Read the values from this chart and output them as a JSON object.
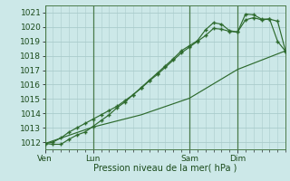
{
  "title": "",
  "xlabel": "Pression niveau de la mer( hPa )",
  "bg_color": "#cce8e8",
  "grid_color": "#aacccc",
  "line_color1": "#2d6a2d",
  "line_color2": "#2d6a2d",
  "line_color3": "#2d6a2d",
  "ylim": [
    1011.5,
    1021.5
  ],
  "yticks": [
    1012,
    1013,
    1014,
    1015,
    1016,
    1017,
    1018,
    1019,
    1020,
    1021
  ],
  "xtick_labels": [
    "Ven",
    "Lun",
    "Sam",
    "Dim"
  ],
  "xtick_positions": [
    0,
    6,
    18,
    24
  ],
  "vline_positions": [
    0,
    6,
    18,
    24
  ],
  "xlim": [
    0,
    30
  ],
  "series1_x": [
    0,
    1,
    2,
    3,
    4,
    5,
    6,
    7,
    8,
    9,
    10,
    11,
    12,
    13,
    14,
    15,
    16,
    17,
    18,
    19,
    20,
    21,
    22,
    23,
    24,
    25,
    26,
    27,
    28,
    29,
    30
  ],
  "series1_y": [
    1011.9,
    1011.85,
    1011.85,
    1012.2,
    1012.5,
    1012.7,
    1013.1,
    1013.5,
    1013.9,
    1014.4,
    1014.8,
    1015.3,
    1015.8,
    1016.3,
    1016.8,
    1017.3,
    1017.8,
    1018.35,
    1018.7,
    1019.05,
    1019.8,
    1020.3,
    1020.2,
    1019.75,
    1019.65,
    1020.5,
    1020.65,
    1020.5,
    1020.55,
    1019.0,
    1018.3
  ],
  "series2_x": [
    0,
    1,
    2,
    3,
    4,
    5,
    6,
    7,
    8,
    9,
    10,
    11,
    12,
    13,
    14,
    15,
    16,
    17,
    18,
    19,
    20,
    21,
    22,
    23,
    24,
    25,
    26,
    27,
    28,
    29,
    30
  ],
  "series2_y": [
    1011.9,
    1012.0,
    1012.3,
    1012.7,
    1013.0,
    1013.3,
    1013.6,
    1013.9,
    1014.2,
    1014.5,
    1014.9,
    1015.3,
    1015.75,
    1016.25,
    1016.7,
    1017.2,
    1017.7,
    1018.2,
    1018.6,
    1019.0,
    1019.4,
    1019.9,
    1019.85,
    1019.7,
    1019.65,
    1020.9,
    1020.85,
    1020.55,
    1020.55,
    1020.4,
    1018.3
  ],
  "series3_x": [
    0,
    6,
    12,
    18,
    24,
    30
  ],
  "series3_y": [
    1011.9,
    1013.05,
    1013.9,
    1015.05,
    1017.05,
    1018.35
  ],
  "n_points": 31
}
